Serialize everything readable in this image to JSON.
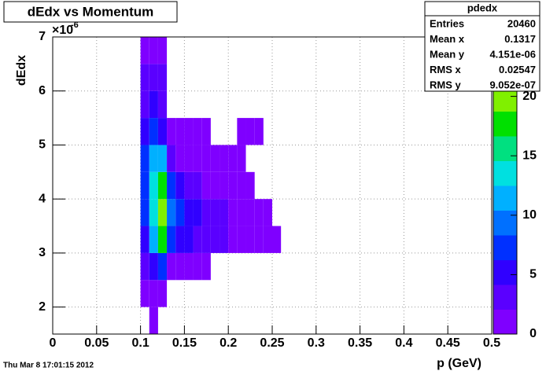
{
  "chart_data": {
    "type": "heatmap",
    "title": "dEdx vs Momentum",
    "x_label": "p (GeV)",
    "y_label": "dEdx",
    "y_exponent_base": "×10",
    "y_exponent": "-6",
    "timestamp": "Thu Mar  8 17:01:15 2012",
    "xlim": [
      0,
      0.5
    ],
    "xticks": [
      0,
      0.05,
      0.1,
      0.15,
      0.2,
      0.25,
      0.3,
      0.35,
      0.4,
      0.45,
      0.5
    ],
    "ylim": [
      1.5,
      7
    ],
    "yticks": [
      2,
      3,
      4,
      5,
      6,
      7
    ],
    "zlim": [
      0,
      25
    ],
    "zticks": [
      0,
      5,
      10,
      15,
      20
    ],
    "grid": true,
    "palette": [
      "#7f00ff",
      "#5a00ff",
      "#3000ff",
      "#0030ff",
      "#0070ff",
      "#00b0ff",
      "#00e0e0",
      "#00e080",
      "#00e000",
      "#80f000",
      "#d0f000",
      "#ffff00"
    ],
    "x_bins": [
      0.09,
      0.1,
      0.11,
      0.12,
      0.13,
      0.14,
      0.15,
      0.16,
      0.17,
      0.18,
      0.19,
      0.2,
      0.21,
      0.22,
      0.23,
      0.24,
      0.25,
      0.26,
      0.27
    ],
    "y_bins": [
      1.5,
      2,
      2.5,
      3,
      3.5,
      4,
      4.5,
      5,
      5.5,
      6,
      6.5,
      7
    ],
    "z": [
      [
        null,
        null,
        1,
        null,
        null,
        null,
        null,
        null,
        null,
        null,
        null,
        null,
        null,
        null,
        null,
        null,
        null,
        null
      ],
      [
        null,
        1,
        2,
        1,
        null,
        null,
        null,
        null,
        null,
        null,
        null,
        null,
        null,
        null,
        null,
        null,
        null,
        null
      ],
      [
        null,
        3,
        6,
        8,
        2,
        1,
        1,
        1,
        1,
        null,
        null,
        null,
        null,
        null,
        null,
        null,
        null,
        null
      ],
      [
        null,
        6,
        12,
        18,
        8,
        6,
        5,
        4,
        4,
        3,
        3,
        2,
        2,
        1,
        1,
        1,
        1,
        null
      ],
      [
        null,
        8,
        14,
        20,
        9,
        7,
        6,
        5,
        4,
        3,
        3,
        2,
        2,
        1,
        1,
        1,
        null,
        null
      ],
      [
        null,
        8,
        13,
        17,
        7,
        5,
        4,
        3,
        2,
        2,
        1,
        1,
        1,
        1,
        null,
        null,
        null,
        null
      ],
      [
        null,
        7,
        11,
        12,
        3,
        2,
        1,
        1,
        1,
        1,
        1,
        1,
        1,
        null,
        null,
        null,
        null,
        null
      ],
      [
        null,
        5,
        7,
        6,
        1,
        1,
        1,
        1,
        1,
        null,
        null,
        null,
        1,
        1,
        1,
        null,
        null,
        null
      ],
      [
        null,
        4,
        5,
        4,
        null,
        null,
        null,
        null,
        null,
        null,
        null,
        null,
        null,
        null,
        null,
        null,
        null,
        null
      ],
      [
        null,
        3,
        3,
        3,
        null,
        null,
        null,
        null,
        null,
        null,
        null,
        null,
        null,
        null,
        null,
        null,
        null,
        null
      ],
      [
        null,
        2,
        2,
        2,
        null,
        null,
        null,
        null,
        null,
        null,
        null,
        null,
        null,
        null,
        null,
        null,
        null,
        null
      ]
    ],
    "stats": {
      "title": "pdedx",
      "rows": [
        [
          "Entries",
          "20460"
        ],
        [
          "Mean x",
          "0.1317"
        ],
        [
          "Mean y",
          "4.151e-06"
        ],
        [
          "RMS x",
          "0.02547"
        ],
        [
          "RMS y",
          "9.052e-07"
        ]
      ]
    }
  }
}
